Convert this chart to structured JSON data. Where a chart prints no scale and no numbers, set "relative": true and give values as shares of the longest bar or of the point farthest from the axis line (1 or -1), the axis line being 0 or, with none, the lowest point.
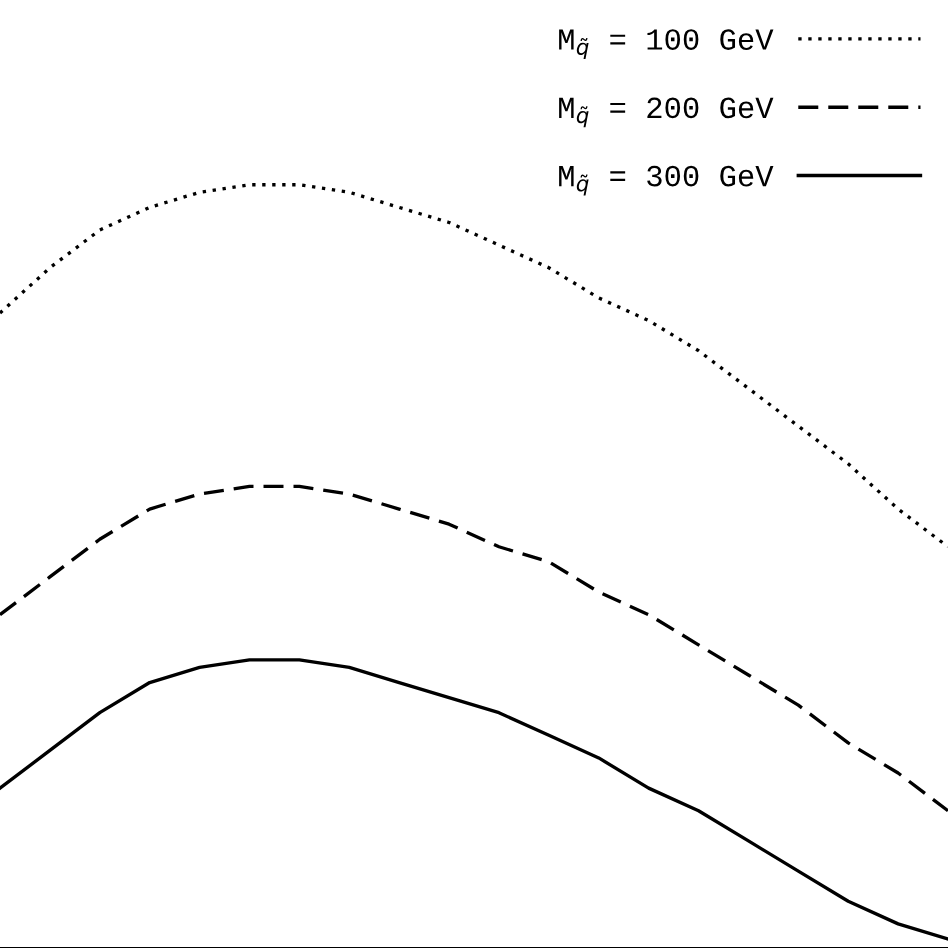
{
  "chart_data": {
    "type": "line",
    "relative": true,
    "legend": "top right",
    "grid": false,
    "marker": "none",
    "categories": [
      null,
      null,
      null,
      null,
      null,
      null,
      null,
      null,
      null,
      null,
      null,
      null,
      null,
      null,
      null,
      null,
      null,
      null,
      null,
      null
    ],
    "series": [
      {
        "name": "M$_{q̃}$ = 100 GeV",
        "color": "#000000",
        "line_style": "dotted",
        "values": [
          0.83,
          0.89,
          0.94,
          0.97,
          0.99,
          1.0,
          1.0,
          0.99,
          0.97,
          0.95,
          0.92,
          0.89,
          0.85,
          0.82,
          0.78,
          0.73,
          0.68,
          0.63,
          0.57,
          0.52
        ]
      },
      {
        "name": "M$_{q̃}$ = 200 GeV",
        "color": "#000000",
        "line_style": "dashed",
        "values": [
          0.43,
          0.48,
          0.53,
          0.57,
          0.59,
          0.6,
          0.6,
          0.59,
          0.57,
          0.55,
          0.52,
          0.5,
          0.46,
          0.43,
          0.39,
          0.35,
          0.31,
          0.26,
          0.22,
          0.17
        ]
      },
      {
        "name": "M$_{q̃}$ = 300 GeV",
        "color": "#000000",
        "line_style": "solid",
        "values": [
          0.2,
          0.25,
          0.3,
          0.34,
          0.36,
          0.37,
          0.37,
          0.36,
          0.34,
          0.32,
          0.3,
          0.27,
          0.24,
          0.2,
          0.17,
          0.13,
          0.09,
          0.05,
          0.02,
          0.0
        ]
      }
    ]
  }
}
